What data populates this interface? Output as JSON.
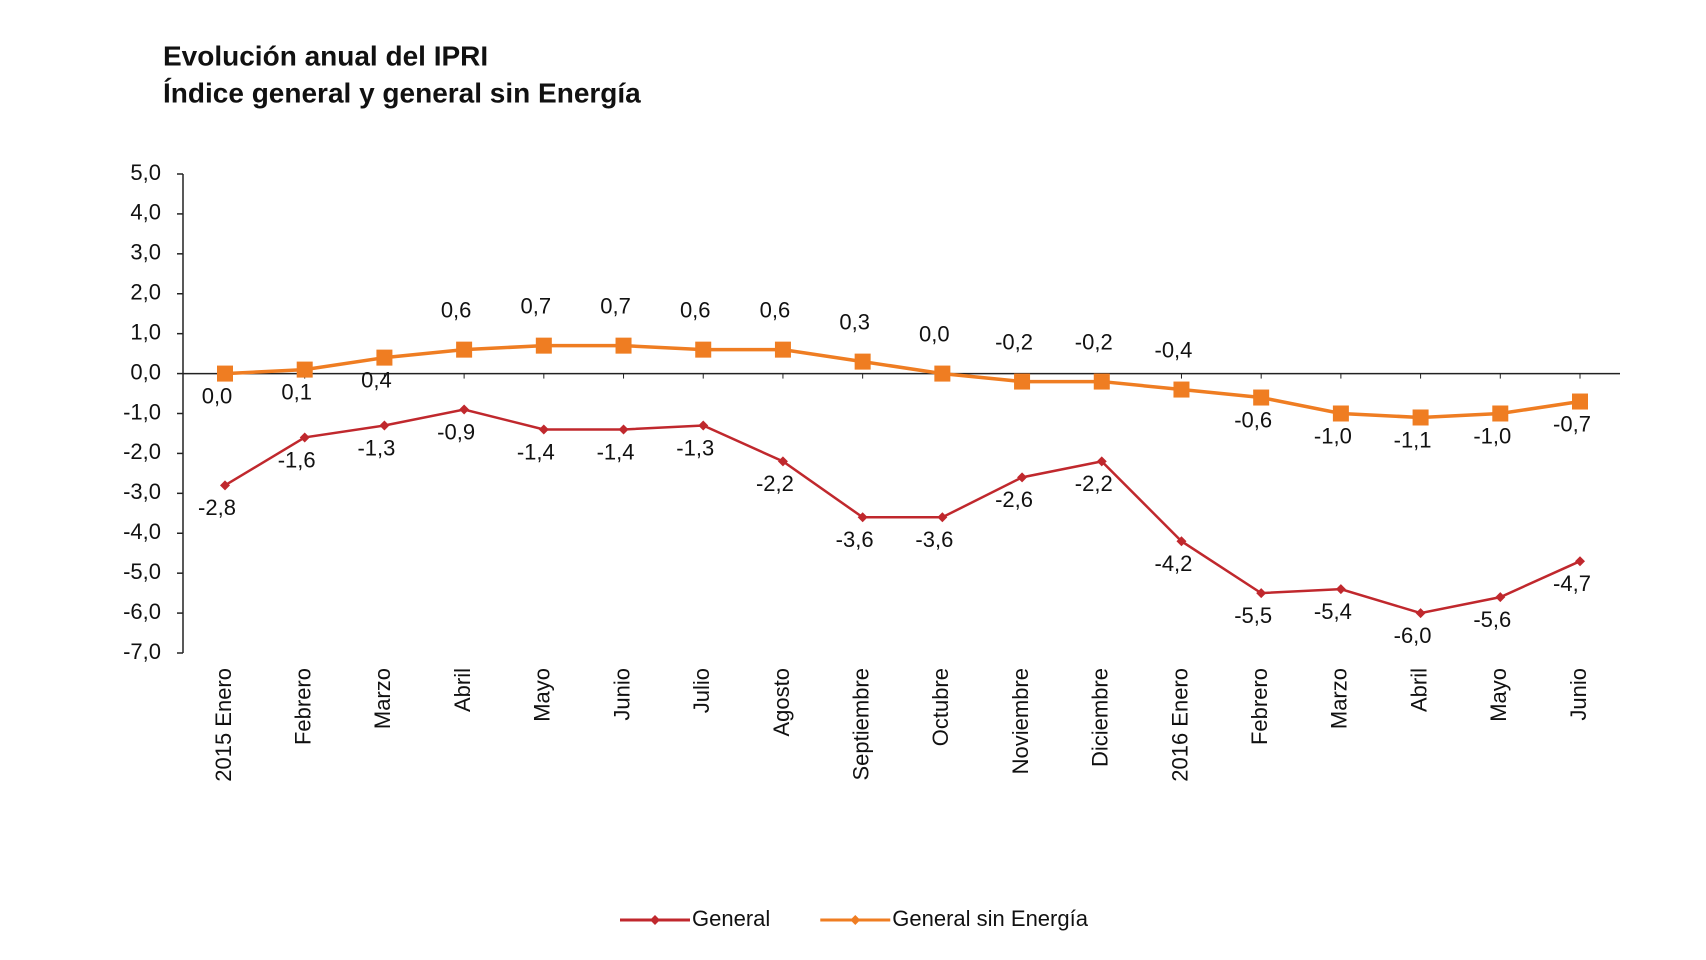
{
  "chart_data": {
    "type": "line",
    "title": "Evolución anual del IPRI",
    "subtitle": "Índice general y general sin Energía",
    "categories": [
      "2015 Enero",
      "Febrero",
      "Marzo",
      "Abril",
      "Mayo",
      "Junio",
      "Julio",
      "Agosto",
      "Septiembre",
      "Octubre",
      "Noviembre",
      "Diciembre",
      "2016 Enero",
      "Febrero",
      "Marzo",
      "Abril",
      "Mayo",
      "Junio"
    ],
    "series": [
      {
        "name": "General",
        "color": "#c0282d",
        "marker": "diamond",
        "values": [
          -2.8,
          -1.6,
          -1.3,
          -0.9,
          -1.4,
          -1.4,
          -1.3,
          -2.2,
          -3.6,
          -3.6,
          -2.6,
          -2.2,
          -4.2,
          -5.5,
          -5.4,
          -6.0,
          -5.6,
          -4.7
        ],
        "value_labels": [
          "-2,8",
          "-1,6",
          "-1,3",
          "-0,9",
          "-1,4",
          "-1,4",
          "-1,3",
          "-2,2",
          "-3,6",
          "-3,6",
          "-2,6",
          "-2,2",
          "-4,2",
          "-5,5",
          "-5,4",
          "-6,0",
          "-5,6",
          "-4,7"
        ]
      },
      {
        "name": "General sin Energía",
        "color": "#ef7d22",
        "marker": "square",
        "values": [
          0.0,
          0.1,
          0.4,
          0.6,
          0.7,
          0.7,
          0.6,
          0.6,
          0.3,
          0.0,
          -0.2,
          -0.2,
          -0.4,
          -0.6,
          -1.0,
          -1.1,
          -1.0,
          -0.7
        ],
        "value_labels": [
          "0,0",
          "0,1",
          "0,4",
          "0,6",
          "0,7",
          "0,7",
          "0,6",
          "0,6",
          "0,3",
          "0,0",
          "-0,2",
          "-0,2",
          "-0,4",
          "-0,6",
          "-1,0",
          "-1,1",
          "-1,0",
          "-0,7"
        ]
      }
    ],
    "ylim": [
      -7,
      5
    ],
    "yticks": [
      {
        "value": -7,
        "label": "-7,0"
      },
      {
        "value": -6,
        "label": "-6,0"
      },
      {
        "value": -5,
        "label": "-5,0"
      },
      {
        "value": -4,
        "label": "-4,0"
      },
      {
        "value": -3,
        "label": "-3,0"
      },
      {
        "value": -2,
        "label": "-2,0"
      },
      {
        "value": -1,
        "label": "-1,0"
      },
      {
        "value": 0,
        "label": "0,0"
      },
      {
        "value": 1,
        "label": "1,0"
      },
      {
        "value": 2,
        "label": "2,0"
      },
      {
        "value": 3,
        "label": "3,0"
      },
      {
        "value": 4,
        "label": "4,0"
      },
      {
        "value": 5,
        "label": "5,0"
      }
    ],
    "grid": false,
    "legend": "bottom"
  }
}
